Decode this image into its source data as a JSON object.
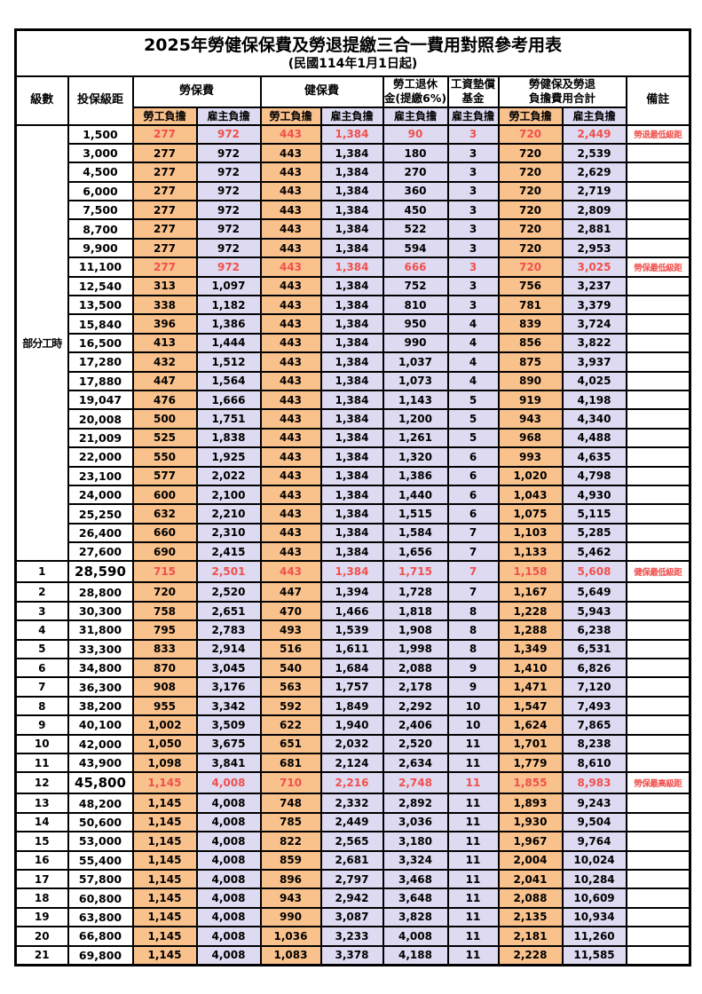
{
  "title": {
    "line1": "2025年勞健保保費及勞退提繳三合一費用對照參考用表",
    "line2": "(民國114年1月1日起)"
  },
  "colors": {
    "employee_bg": "#F9C18C",
    "employer_bg": "#DDDAF1",
    "highlight_red": "#F1504C",
    "border": "#000000"
  },
  "header": {
    "level": "級數",
    "salary": "投保級距",
    "labor_ins": "勞保費",
    "health_ins": "健保費",
    "pension_l1": "勞工退休",
    "pension_l2": "金(提繳6%)",
    "wage_fund_l1": "工資墊償",
    "wage_fund_l2": "基金",
    "total_l1": "勞健保及勞退",
    "total_l2": "負擔費用合計",
    "remark": "備註",
    "sub_employee": "勞工負擔",
    "sub_employer": "雇主負擔"
  },
  "table": {
    "group": {
      "label": "部分工時",
      "rowspan": 23
    },
    "rows": [
      {
        "salary": "1,500",
        "labor_self": "277",
        "labor_emp": "972",
        "health_self": "443",
        "health_emp": "1,384",
        "pension": "90",
        "wage_fund": "3",
        "total_self": "720",
        "total_emp": "2,449",
        "remark": "勞退最低級距",
        "red": true
      },
      {
        "salary": "3,000",
        "labor_self": "277",
        "labor_emp": "972",
        "health_self": "443",
        "health_emp": "1,384",
        "pension": "180",
        "wage_fund": "3",
        "total_self": "720",
        "total_emp": "2,539",
        "remark": ""
      },
      {
        "salary": "4,500",
        "labor_self": "277",
        "labor_emp": "972",
        "health_self": "443",
        "health_emp": "1,384",
        "pension": "270",
        "wage_fund": "3",
        "total_self": "720",
        "total_emp": "2,629",
        "remark": ""
      },
      {
        "salary": "6,000",
        "labor_self": "277",
        "labor_emp": "972",
        "health_self": "443",
        "health_emp": "1,384",
        "pension": "360",
        "wage_fund": "3",
        "total_self": "720",
        "total_emp": "2,719",
        "remark": ""
      },
      {
        "salary": "7,500",
        "labor_self": "277",
        "labor_emp": "972",
        "health_self": "443",
        "health_emp": "1,384",
        "pension": "450",
        "wage_fund": "3",
        "total_self": "720",
        "total_emp": "2,809",
        "remark": ""
      },
      {
        "salary": "8,700",
        "labor_self": "277",
        "labor_emp": "972",
        "health_self": "443",
        "health_emp": "1,384",
        "pension": "522",
        "wage_fund": "3",
        "total_self": "720",
        "total_emp": "2,881",
        "remark": ""
      },
      {
        "salary": "9,900",
        "labor_self": "277",
        "labor_emp": "972",
        "health_self": "443",
        "health_emp": "1,384",
        "pension": "594",
        "wage_fund": "3",
        "total_self": "720",
        "total_emp": "2,953",
        "remark": ""
      },
      {
        "salary": "11,100",
        "labor_self": "277",
        "labor_emp": "972",
        "health_self": "443",
        "health_emp": "1,384",
        "pension": "666",
        "wage_fund": "3",
        "total_self": "720",
        "total_emp": "3,025",
        "remark": "勞保最低級距",
        "red": true
      },
      {
        "salary": "12,540",
        "labor_self": "313",
        "labor_emp": "1,097",
        "health_self": "443",
        "health_emp": "1,384",
        "pension": "752",
        "wage_fund": "3",
        "total_self": "756",
        "total_emp": "3,237",
        "remark": ""
      },
      {
        "salary": "13,500",
        "labor_self": "338",
        "labor_emp": "1,182",
        "health_self": "443",
        "health_emp": "1,384",
        "pension": "810",
        "wage_fund": "3",
        "total_self": "781",
        "total_emp": "3,379",
        "remark": ""
      },
      {
        "salary": "15,840",
        "labor_self": "396",
        "labor_emp": "1,386",
        "health_self": "443",
        "health_emp": "1,384",
        "pension": "950",
        "wage_fund": "4",
        "total_self": "839",
        "total_emp": "3,724",
        "remark": ""
      },
      {
        "salary": "16,500",
        "labor_self": "413",
        "labor_emp": "1,444",
        "health_self": "443",
        "health_emp": "1,384",
        "pension": "990",
        "wage_fund": "4",
        "total_self": "856",
        "total_emp": "3,822",
        "remark": ""
      },
      {
        "salary": "17,280",
        "labor_self": "432",
        "labor_emp": "1,512",
        "health_self": "443",
        "health_emp": "1,384",
        "pension": "1,037",
        "wage_fund": "4",
        "total_self": "875",
        "total_emp": "3,937",
        "remark": ""
      },
      {
        "salary": "17,880",
        "labor_self": "447",
        "labor_emp": "1,564",
        "health_self": "443",
        "health_emp": "1,384",
        "pension": "1,073",
        "wage_fund": "4",
        "total_self": "890",
        "total_emp": "4,025",
        "remark": ""
      },
      {
        "salary": "19,047",
        "labor_self": "476",
        "labor_emp": "1,666",
        "health_self": "443",
        "health_emp": "1,384",
        "pension": "1,143",
        "wage_fund": "5",
        "total_self": "919",
        "total_emp": "4,198",
        "remark": ""
      },
      {
        "salary": "20,008",
        "labor_self": "500",
        "labor_emp": "1,751",
        "health_self": "443",
        "health_emp": "1,384",
        "pension": "1,200",
        "wage_fund": "5",
        "total_self": "943",
        "total_emp": "4,340",
        "remark": ""
      },
      {
        "salary": "21,009",
        "labor_self": "525",
        "labor_emp": "1,838",
        "health_self": "443",
        "health_emp": "1,384",
        "pension": "1,261",
        "wage_fund": "5",
        "total_self": "968",
        "total_emp": "4,488",
        "remark": ""
      },
      {
        "salary": "22,000",
        "labor_self": "550",
        "labor_emp": "1,925",
        "health_self": "443",
        "health_emp": "1,384",
        "pension": "1,320",
        "wage_fund": "6",
        "total_self": "993",
        "total_emp": "4,635",
        "remark": ""
      },
      {
        "salary": "23,100",
        "labor_self": "577",
        "labor_emp": "2,022",
        "health_self": "443",
        "health_emp": "1,384",
        "pension": "1,386",
        "wage_fund": "6",
        "total_self": "1,020",
        "total_emp": "4,798",
        "remark": ""
      },
      {
        "salary": "24,000",
        "labor_self": "600",
        "labor_emp": "2,100",
        "health_self": "443",
        "health_emp": "1,384",
        "pension": "1,440",
        "wage_fund": "6",
        "total_self": "1,043",
        "total_emp": "4,930",
        "remark": ""
      },
      {
        "salary": "25,250",
        "labor_self": "632",
        "labor_emp": "2,210",
        "health_self": "443",
        "health_emp": "1,384",
        "pension": "1,515",
        "wage_fund": "6",
        "total_self": "1,075",
        "total_emp": "5,115",
        "remark": ""
      },
      {
        "salary": "26,400",
        "labor_self": "660",
        "labor_emp": "2,310",
        "health_self": "443",
        "health_emp": "1,384",
        "pension": "1,584",
        "wage_fund": "7",
        "total_self": "1,103",
        "total_emp": "5,285",
        "remark": ""
      },
      {
        "salary": "27,600",
        "labor_self": "690",
        "labor_emp": "2,415",
        "health_self": "443",
        "health_emp": "1,384",
        "pension": "1,656",
        "wage_fund": "7",
        "total_self": "1,133",
        "total_emp": "5,462",
        "remark": ""
      },
      {
        "level": "1",
        "salary": "28,590",
        "labor_self": "715",
        "labor_emp": "2,501",
        "health_self": "443",
        "health_emp": "1,384",
        "pension": "1,715",
        "wage_fund": "7",
        "total_self": "1,158",
        "total_emp": "5,608",
        "remark": "健保最低級距",
        "red": true,
        "big": true
      },
      {
        "level": "2",
        "salary": "28,800",
        "labor_self": "720",
        "labor_emp": "2,520",
        "health_self": "447",
        "health_emp": "1,394",
        "pension": "1,728",
        "wage_fund": "7",
        "total_self": "1,167",
        "total_emp": "5,649",
        "remark": ""
      },
      {
        "level": "3",
        "salary": "30,300",
        "labor_self": "758",
        "labor_emp": "2,651",
        "health_self": "470",
        "health_emp": "1,466",
        "pension": "1,818",
        "wage_fund": "8",
        "total_self": "1,228",
        "total_emp": "5,943",
        "remark": ""
      },
      {
        "level": "4",
        "salary": "31,800",
        "labor_self": "795",
        "labor_emp": "2,783",
        "health_self": "493",
        "health_emp": "1,539",
        "pension": "1,908",
        "wage_fund": "8",
        "total_self": "1,288",
        "total_emp": "6,238",
        "remark": ""
      },
      {
        "level": "5",
        "salary": "33,300",
        "labor_self": "833",
        "labor_emp": "2,914",
        "health_self": "516",
        "health_emp": "1,611",
        "pension": "1,998",
        "wage_fund": "8",
        "total_self": "1,349",
        "total_emp": "6,531",
        "remark": ""
      },
      {
        "level": "6",
        "salary": "34,800",
        "labor_self": "870",
        "labor_emp": "3,045",
        "health_self": "540",
        "health_emp": "1,684",
        "pension": "2,088",
        "wage_fund": "9",
        "total_self": "1,410",
        "total_emp": "6,826",
        "remark": ""
      },
      {
        "level": "7",
        "salary": "36,300",
        "labor_self": "908",
        "labor_emp": "3,176",
        "health_self": "563",
        "health_emp": "1,757",
        "pension": "2,178",
        "wage_fund": "9",
        "total_self": "1,471",
        "total_emp": "7,120",
        "remark": ""
      },
      {
        "level": "8",
        "salary": "38,200",
        "labor_self": "955",
        "labor_emp": "3,342",
        "health_self": "592",
        "health_emp": "1,849",
        "pension": "2,292",
        "wage_fund": "10",
        "total_self": "1,547",
        "total_emp": "7,493",
        "remark": ""
      },
      {
        "level": "9",
        "salary": "40,100",
        "labor_self": "1,002",
        "labor_emp": "3,509",
        "health_self": "622",
        "health_emp": "1,940",
        "pension": "2,406",
        "wage_fund": "10",
        "total_self": "1,624",
        "total_emp": "7,865",
        "remark": ""
      },
      {
        "level": "10",
        "salary": "42,000",
        "labor_self": "1,050",
        "labor_emp": "3,675",
        "health_self": "651",
        "health_emp": "2,032",
        "pension": "2,520",
        "wage_fund": "11",
        "total_self": "1,701",
        "total_emp": "8,238",
        "remark": ""
      },
      {
        "level": "11",
        "salary": "43,900",
        "labor_self": "1,098",
        "labor_emp": "3,841",
        "health_self": "681",
        "health_emp": "2,124",
        "pension": "2,634",
        "wage_fund": "11",
        "total_self": "1,779",
        "total_emp": "8,610",
        "remark": ""
      },
      {
        "level": "12",
        "salary": "45,800",
        "labor_self": "1,145",
        "labor_emp": "4,008",
        "health_self": "710",
        "health_emp": "2,216",
        "pension": "2,748",
        "wage_fund": "11",
        "total_self": "1,855",
        "total_emp": "8,983",
        "remark": "勞保最高級距",
        "red": true,
        "big": true
      },
      {
        "level": "13",
        "salary": "48,200",
        "labor_self": "1,145",
        "labor_emp": "4,008",
        "health_self": "748",
        "health_emp": "2,332",
        "pension": "2,892",
        "wage_fund": "11",
        "total_self": "1,893",
        "total_emp": "9,243",
        "remark": ""
      },
      {
        "level": "14",
        "salary": "50,600",
        "labor_self": "1,145",
        "labor_emp": "4,008",
        "health_self": "785",
        "health_emp": "2,449",
        "pension": "3,036",
        "wage_fund": "11",
        "total_self": "1,930",
        "total_emp": "9,504",
        "remark": ""
      },
      {
        "level": "15",
        "salary": "53,000",
        "labor_self": "1,145",
        "labor_emp": "4,008",
        "health_self": "822",
        "health_emp": "2,565",
        "pension": "3,180",
        "wage_fund": "11",
        "total_self": "1,967",
        "total_emp": "9,764",
        "remark": ""
      },
      {
        "level": "16",
        "salary": "55,400",
        "labor_self": "1,145",
        "labor_emp": "4,008",
        "health_self": "859",
        "health_emp": "2,681",
        "pension": "3,324",
        "wage_fund": "11",
        "total_self": "2,004",
        "total_emp": "10,024",
        "remark": ""
      },
      {
        "level": "17",
        "salary": "57,800",
        "labor_self": "1,145",
        "labor_emp": "4,008",
        "health_self": "896",
        "health_emp": "2,797",
        "pension": "3,468",
        "wage_fund": "11",
        "total_self": "2,041",
        "total_emp": "10,284",
        "remark": ""
      },
      {
        "level": "18",
        "salary": "60,800",
        "labor_self": "1,145",
        "labor_emp": "4,008",
        "health_self": "943",
        "health_emp": "2,942",
        "pension": "3,648",
        "wage_fund": "11",
        "total_self": "2,088",
        "total_emp": "10,609",
        "remark": ""
      },
      {
        "level": "19",
        "salary": "63,800",
        "labor_self": "1,145",
        "labor_emp": "4,008",
        "health_self": "990",
        "health_emp": "3,087",
        "pension": "3,828",
        "wage_fund": "11",
        "total_self": "2,135",
        "total_emp": "10,934",
        "remark": ""
      },
      {
        "level": "20",
        "salary": "66,800",
        "labor_self": "1,145",
        "labor_emp": "4,008",
        "health_self": "1,036",
        "health_emp": "3,233",
        "pension": "4,008",
        "wage_fund": "11",
        "total_self": "2,181",
        "total_emp": "11,260",
        "remark": ""
      },
      {
        "level": "21",
        "salary": "69,800",
        "labor_self": "1,145",
        "labor_emp": "4,008",
        "health_self": "1,083",
        "health_emp": "3,378",
        "pension": "4,188",
        "wage_fund": "11",
        "total_self": "2,228",
        "total_emp": "11,585",
        "remark": ""
      }
    ]
  }
}
